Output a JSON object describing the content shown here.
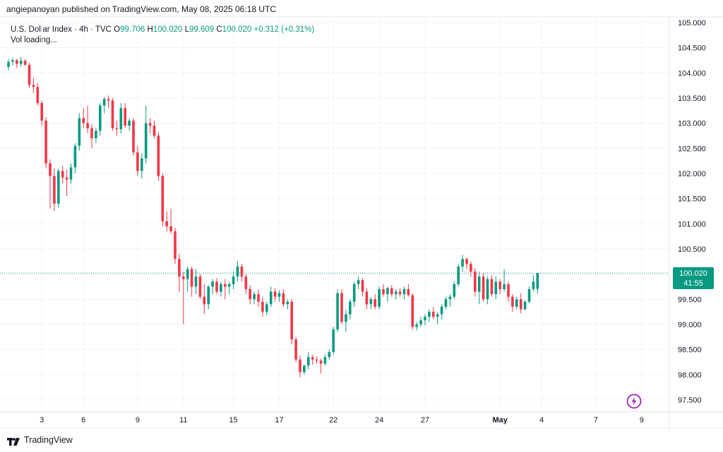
{
  "publish_line": "angiepanoyan published on TradingView.com, May 08, 2025 06:18 UTC",
  "legend": {
    "symbol": "U.S. Dollar Index · 4h · TVC",
    "open_label": "O",
    "open": "99.706",
    "high_label": "H",
    "high": "100.020",
    "low_label": "L",
    "low": "99.609",
    "close_label": "C",
    "close": "100.020",
    "change": "+0.312 (+0.31%)",
    "vol": "Vol loading..."
  },
  "price_tag": {
    "price": "100.020",
    "countdown": "41:55"
  },
  "footer": {
    "brand": "TradingView"
  },
  "icons": {
    "logo": "tradingview-logo-icon",
    "flash": "lightning-icon"
  },
  "colors": {
    "up": "#089981",
    "down": "#F23645",
    "grid": "#F0F3FA",
    "text": "#131722",
    "flash": "#9C27B0"
  },
  "chart_data": {
    "type": "candlestick",
    "timeframe": "4h",
    "y_ticks": [
      "105.000",
      "104.500",
      "104.000",
      "103.500",
      "103.000",
      "102.500",
      "102.000",
      "101.500",
      "101.000",
      "100.500",
      "100.000",
      "99.500",
      "99.000",
      "98.500",
      "98.000",
      "97.500"
    ],
    "ylim": [
      97.3,
      105.2
    ],
    "x_ticks": [
      {
        "label": "3",
        "index": 8,
        "bold": false
      },
      {
        "label": "6",
        "index": 18,
        "bold": false
      },
      {
        "label": "9",
        "index": 31,
        "bold": false
      },
      {
        "label": "11",
        "index": 42,
        "bold": false
      },
      {
        "label": "15",
        "index": 54,
        "bold": false
      },
      {
        "label": "17",
        "index": 65,
        "bold": false
      },
      {
        "label": "22",
        "index": 78,
        "bold": false
      },
      {
        "label": "24",
        "index": 89,
        "bold": false
      },
      {
        "label": "27",
        "index": 100,
        "bold": false
      },
      {
        "label": "May",
        "index": 118,
        "bold": true
      },
      {
        "label": "4",
        "index": 128,
        "bold": false
      },
      {
        "label": "7",
        "index": 141,
        "bold": false
      },
      {
        "label": "9",
        "index": 152,
        "bold": false
      }
    ],
    "last_close": 100.02,
    "candles": [
      [
        104.12,
        104.27,
        104.05,
        104.22
      ],
      [
        104.22,
        104.3,
        104.15,
        104.25
      ],
      [
        104.25,
        104.28,
        104.1,
        104.18
      ],
      [
        104.18,
        104.32,
        104.12,
        104.24
      ],
      [
        104.24,
        104.27,
        104.14,
        104.16
      ],
      [
        104.16,
        104.2,
        103.7,
        103.76
      ],
      [
        103.76,
        103.9,
        103.6,
        103.72
      ],
      [
        103.72,
        103.8,
        103.35,
        103.4
      ],
      [
        103.4,
        103.45,
        102.95,
        103.05
      ],
      [
        103.05,
        103.12,
        102.1,
        102.2
      ],
      [
        102.2,
        102.28,
        101.3,
        101.95
      ],
      [
        101.95,
        102.1,
        101.25,
        101.4
      ],
      [
        101.4,
        102.1,
        101.32,
        102.05
      ],
      [
        102.05,
        102.15,
        101.8,
        101.92
      ],
      [
        101.92,
        102.08,
        101.55,
        101.88
      ],
      [
        101.88,
        102.2,
        101.8,
        102.12
      ],
      [
        102.12,
        102.6,
        102.0,
        102.55
      ],
      [
        102.55,
        103.2,
        102.45,
        103.1
      ],
      [
        103.1,
        103.3,
        102.9,
        103.0
      ],
      [
        103.0,
        103.35,
        102.8,
        102.9
      ],
      [
        102.9,
        102.98,
        102.5,
        102.7
      ],
      [
        102.7,
        102.9,
        102.6,
        102.85
      ],
      [
        102.85,
        103.4,
        102.75,
        103.35
      ],
      [
        103.35,
        103.52,
        103.2,
        103.48
      ],
      [
        103.48,
        103.55,
        103.3,
        103.45
      ],
      [
        103.45,
        103.5,
        102.85,
        102.9
      ],
      [
        102.9,
        103.05,
        102.75,
        102.88
      ],
      [
        102.88,
        103.4,
        102.8,
        103.3
      ],
      [
        103.3,
        103.4,
        102.9,
        102.95
      ],
      [
        102.95,
        103.1,
        102.85,
        103.05
      ],
      [
        103.05,
        103.1,
        102.35,
        102.42
      ],
      [
        102.42,
        102.55,
        101.95,
        102.05
      ],
      [
        102.05,
        102.4,
        101.9,
        102.3
      ],
      [
        102.3,
        103.35,
        102.2,
        103.0
      ],
      [
        103.0,
        103.1,
        102.8,
        102.95
      ],
      [
        102.95,
        103.05,
        102.7,
        102.75
      ],
      [
        102.75,
        102.82,
        101.85,
        101.95
      ],
      [
        101.95,
        102.0,
        100.95,
        101.05
      ],
      [
        101.05,
        101.25,
        100.85,
        100.95
      ],
      [
        100.95,
        101.3,
        100.8,
        100.85
      ],
      [
        100.85,
        100.92,
        100.2,
        100.3
      ],
      [
        100.3,
        100.4,
        99.65,
        99.95
      ],
      [
        99.95,
        100.05,
        99.0,
        99.9
      ],
      [
        99.9,
        100.15,
        99.65,
        100.1
      ],
      [
        100.1,
        100.15,
        99.55,
        99.75
      ],
      [
        99.75,
        100.1,
        99.6,
        99.95
      ],
      [
        99.95,
        100.0,
        99.5,
        99.55
      ],
      [
        99.55,
        99.8,
        99.2,
        99.4
      ],
      [
        99.4,
        99.78,
        99.3,
        99.75
      ],
      [
        99.75,
        99.9,
        99.6,
        99.85
      ],
      [
        99.85,
        99.92,
        99.6,
        99.65
      ],
      [
        99.65,
        99.85,
        99.55,
        99.8
      ],
      [
        99.8,
        99.9,
        99.5,
        99.75
      ],
      [
        99.75,
        99.85,
        99.6,
        99.8
      ],
      [
        99.8,
        100.05,
        99.7,
        99.95
      ],
      [
        99.95,
        100.25,
        99.85,
        100.15
      ],
      [
        100.15,
        100.2,
        99.85,
        99.95
      ],
      [
        99.95,
        100.0,
        99.6,
        99.7
      ],
      [
        99.7,
        99.78,
        99.4,
        99.5
      ],
      [
        99.5,
        99.65,
        99.4,
        99.6
      ],
      [
        99.6,
        99.7,
        99.35,
        99.45
      ],
      [
        99.45,
        99.55,
        99.15,
        99.25
      ],
      [
        99.25,
        99.45,
        99.18,
        99.4
      ],
      [
        99.4,
        99.75,
        99.35,
        99.65
      ],
      [
        99.65,
        99.72,
        99.45,
        99.55
      ],
      [
        99.55,
        99.68,
        99.45,
        99.62
      ],
      [
        99.62,
        99.7,
        99.35,
        99.4
      ],
      [
        99.4,
        99.5,
        99.3,
        99.45
      ],
      [
        99.45,
        99.5,
        98.6,
        98.7
      ],
      [
        98.7,
        98.75,
        98.25,
        98.3
      ],
      [
        98.3,
        98.38,
        97.95,
        98.05
      ],
      [
        98.05,
        98.2,
        98.0,
        98.18
      ],
      [
        98.18,
        98.45,
        98.1,
        98.35
      ],
      [
        98.35,
        98.4,
        98.2,
        98.3
      ],
      [
        98.3,
        98.36,
        98.22,
        98.28
      ],
      [
        98.28,
        98.32,
        98.02,
        98.22
      ],
      [
        98.22,
        98.4,
        98.18,
        98.35
      ],
      [
        98.35,
        98.5,
        98.3,
        98.45
      ],
      [
        98.45,
        98.95,
        98.4,
        98.9
      ],
      [
        98.9,
        99.7,
        98.85,
        99.62
      ],
      [
        99.62,
        99.7,
        99.0,
        99.05
      ],
      [
        99.05,
        99.3,
        98.85,
        99.2
      ],
      [
        99.2,
        99.5,
        99.1,
        99.45
      ],
      [
        99.45,
        99.85,
        99.35,
        99.8
      ],
      [
        99.8,
        99.95,
        99.7,
        99.88
      ],
      [
        99.88,
        99.92,
        99.55,
        99.65
      ],
      [
        99.65,
        99.72,
        99.3,
        99.4
      ],
      [
        99.4,
        99.55,
        99.3,
        99.5
      ],
      [
        99.5,
        99.6,
        99.3,
        99.35
      ],
      [
        99.35,
        99.75,
        99.3,
        99.7
      ],
      [
        99.7,
        99.8,
        99.55,
        99.6
      ],
      [
        99.6,
        99.75,
        99.45,
        99.72
      ],
      [
        99.72,
        99.78,
        99.55,
        99.6
      ],
      [
        99.6,
        99.7,
        99.5,
        99.65
      ],
      [
        99.65,
        99.72,
        99.55,
        99.6
      ],
      [
        99.6,
        99.75,
        99.5,
        99.7
      ],
      [
        99.7,
        99.8,
        99.55,
        99.58
      ],
      [
        99.58,
        99.62,
        98.9,
        98.95
      ],
      [
        98.95,
        99.05,
        98.88,
        99.0
      ],
      [
        99.0,
        99.15,
        98.95,
        99.08
      ],
      [
        99.08,
        99.2,
        98.98,
        99.15
      ],
      [
        99.15,
        99.3,
        99.05,
        99.25
      ],
      [
        99.25,
        99.35,
        99.1,
        99.15
      ],
      [
        99.15,
        99.25,
        99.0,
        99.2
      ],
      [
        99.2,
        99.4,
        99.1,
        99.35
      ],
      [
        99.35,
        99.55,
        99.3,
        99.5
      ],
      [
        99.5,
        99.6,
        99.35,
        99.55
      ],
      [
        99.55,
        99.85,
        99.5,
        99.8
      ],
      [
        99.8,
        100.2,
        99.75,
        100.15
      ],
      [
        100.15,
        100.38,
        100.05,
        100.3
      ],
      [
        100.3,
        100.33,
        100.1,
        100.2
      ],
      [
        100.2,
        100.25,
        99.95,
        100.05
      ],
      [
        100.05,
        100.12,
        99.55,
        99.65
      ],
      [
        99.65,
        100.05,
        99.4,
        99.95
      ],
      [
        99.95,
        100.02,
        99.45,
        99.5
      ],
      [
        99.5,
        99.95,
        99.4,
        99.9
      ],
      [
        99.9,
        99.98,
        99.55,
        99.6
      ],
      [
        99.6,
        99.95,
        99.5,
        99.85
      ],
      [
        99.85,
        99.9,
        99.6,
        99.7
      ],
      [
        99.7,
        100.1,
        99.65,
        99.8
      ],
      [
        99.8,
        99.85,
        99.45,
        99.55
      ],
      [
        99.55,
        99.6,
        99.25,
        99.35
      ],
      [
        99.35,
        99.55,
        99.3,
        99.5
      ],
      [
        99.5,
        99.62,
        99.22,
        99.3
      ],
      [
        99.3,
        99.48,
        99.28,
        99.45
      ],
      [
        99.45,
        99.75,
        99.42,
        99.7
      ],
      [
        99.7,
        99.98,
        99.65,
        99.85
      ],
      [
        99.706,
        100.02,
        99.609,
        100.02
      ]
    ]
  }
}
